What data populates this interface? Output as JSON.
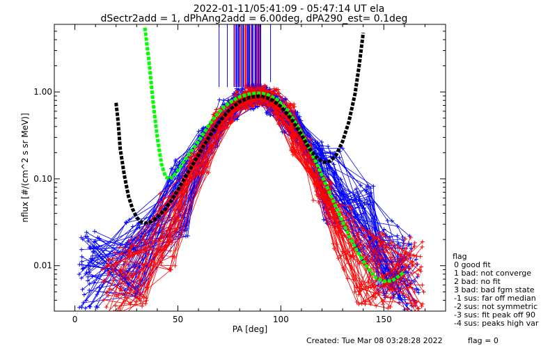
{
  "chart_data": {
    "type": "line",
    "title_line1": "2022-01-11/05:41:09 - 05:47:14 UT ela",
    "title_line2": "dSectr2add = 1, dPhAng2add = 6.00deg, dPA290_est=   0.1deg",
    "xlabel": "PA [deg]",
    "ylabel": "nflux [#/(cm^2 s sr MeV)]",
    "xlim": [
      -10,
      180
    ],
    "ylim": [
      0.003,
      6.0
    ],
    "yscale": "log",
    "x_ticks": [
      0,
      50,
      100,
      150
    ],
    "x_tick_labels": [
      "0",
      "50",
      "100",
      "150"
    ],
    "y_ticks": [
      0.01,
      0.1,
      1.0
    ],
    "y_tick_labels": [
      "0.01",
      "0.10",
      "1.00"
    ],
    "grid": false,
    "series": [
      {
        "color": "#0000ff",
        "style": "lines+plus",
        "count": 60,
        "base_profile": {
          "x": [
            7,
            28,
            50,
            65,
            75,
            82,
            88,
            92,
            98,
            105,
            115,
            125,
            140,
            152,
            162
          ],
          "y": [
            0.009,
            0.012,
            0.06,
            0.3,
            0.62,
            0.82,
            0.9,
            0.88,
            0.72,
            0.45,
            0.2,
            0.085,
            0.03,
            0.012,
            0.008
          ]
        }
      },
      {
        "color": "#ff0000",
        "style": "lines+plus",
        "count": 40,
        "base_profile": {
          "x": [
            18,
            30,
            45,
            60,
            72,
            82,
            88,
            94,
            102,
            110,
            120,
            130,
            140,
            150,
            165
          ],
          "y": [
            0.006,
            0.008,
            0.025,
            0.15,
            0.5,
            0.85,
            0.92,
            0.88,
            0.55,
            0.25,
            0.07,
            0.02,
            0.01,
            0.009,
            0.008
          ]
        }
      },
      {
        "color": "#00ff00",
        "style": "thick-dashed",
        "x": [
          34,
          36,
          38,
          40,
          42,
          44,
          46,
          48,
          50,
          53,
          56,
          60,
          64,
          68,
          72,
          76,
          80,
          84,
          88,
          91,
          94,
          98,
          102,
          106,
          110,
          114,
          118,
          122,
          126,
          130,
          134,
          138,
          142,
          146,
          150,
          154,
          157,
          160
        ],
        "y": [
          5.5,
          2.2,
          0.75,
          0.3,
          0.15,
          0.105,
          0.1,
          0.108,
          0.125,
          0.16,
          0.2,
          0.27,
          0.38,
          0.52,
          0.66,
          0.78,
          0.88,
          0.94,
          0.97,
          0.96,
          0.92,
          0.82,
          0.66,
          0.49,
          0.34,
          0.22,
          0.14,
          0.085,
          0.052,
          0.032,
          0.02,
          0.0135,
          0.0095,
          0.0073,
          0.0066,
          0.0067,
          0.0075,
          0.0085
        ]
      },
      {
        "color": "#000000",
        "style": "thick-dashed",
        "x": [
          20,
          21,
          22,
          24,
          26,
          28,
          30,
          32,
          34,
          37,
          40,
          44,
          48,
          52,
          56,
          60,
          65,
          70,
          75,
          80,
          85,
          90,
          95,
          100,
          105,
          110,
          114,
          118,
          121,
          124,
          127,
          130,
          133,
          136,
          138,
          140
        ],
        "y": [
          0.75,
          0.45,
          0.22,
          0.11,
          0.063,
          0.045,
          0.036,
          0.032,
          0.031,
          0.032,
          0.036,
          0.045,
          0.062,
          0.09,
          0.13,
          0.19,
          0.3,
          0.45,
          0.62,
          0.77,
          0.87,
          0.9,
          0.83,
          0.68,
          0.49,
          0.32,
          0.22,
          0.17,
          0.155,
          0.16,
          0.19,
          0.27,
          0.45,
          0.95,
          2.0,
          4.8
        ]
      }
    ],
    "legend": {
      "position": "right",
      "title": "flag",
      "entries": [
        " 0 good fit",
        " 1 bad: not converge",
        " 2 bad: no fit",
        " 3 bad: bad fgm state",
        "-1 sus: far off median",
        "-2 sus: not symmetric",
        "-3 sus: fit peak off 90",
        "-4 sus: peaks high var"
      ]
    }
  },
  "footer": {
    "created": "Created: Tue Mar 08 03:28:28 2022",
    "flag": "flag = 0"
  }
}
